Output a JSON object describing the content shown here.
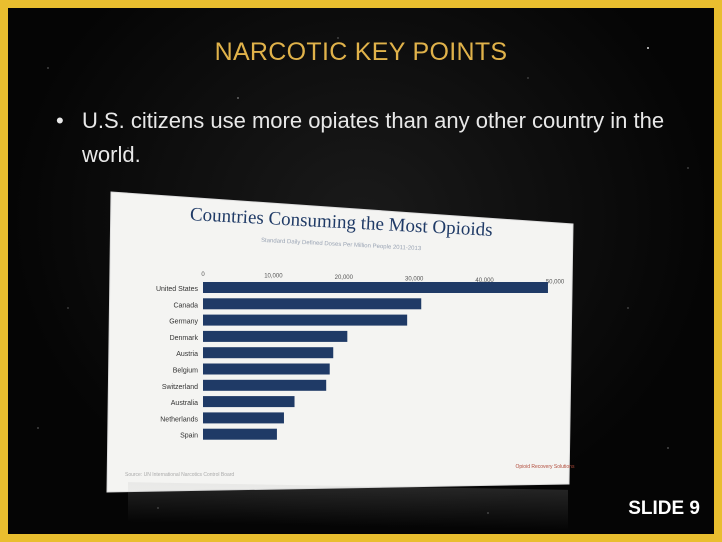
{
  "slide": {
    "title": "NARCOTIC KEY POINTS",
    "bullet_marker": "•",
    "bullet_text": "U.S. citizens use more opiates than any other country in the world.",
    "slide_number": "SLIDE 9"
  },
  "chart_data": {
    "type": "bar",
    "orientation": "horizontal",
    "title": "Countries Consuming the Most Opioids",
    "subtitle": "Standard Daily Defined Doses Per Million People 2011-2013",
    "categories": [
      "United States",
      "Canada",
      "Germany",
      "Denmark",
      "Austria",
      "Belgium",
      "Switzerland",
      "Australia",
      "Netherlands",
      "Spain"
    ],
    "values": [
      49000,
      31000,
      29000,
      20500,
      18500,
      18000,
      17500,
      13000,
      11500,
      10500
    ],
    "ticks": [
      0,
      10000,
      20000,
      30000,
      40000,
      50000
    ],
    "tick_labels": [
      "0",
      "10,000",
      "20,000",
      "30,000",
      "40,000",
      "50,000"
    ],
    "xlim": [
      0,
      50000
    ],
    "bar_color": "#1f3a66",
    "source": "Source: UN International Narcotics Control Board",
    "logo_text": "Opioid Recovery Solutions",
    "grid": false
  }
}
